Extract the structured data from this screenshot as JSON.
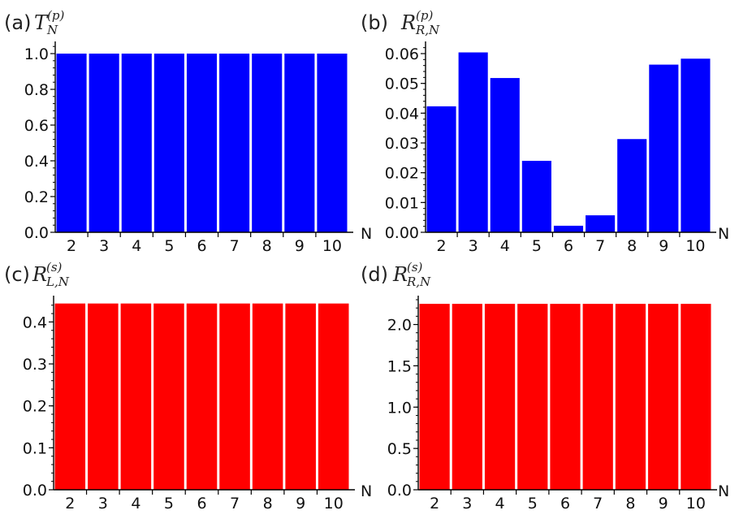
{
  "chart_data": [
    {
      "id": "a",
      "type": "bar",
      "panel_label": "(a)",
      "symbol": "T",
      "superscript": "(p)",
      "subscript": "N",
      "xlabel": "N",
      "categories": [
        "2",
        "3",
        "4",
        "5",
        "6",
        "7",
        "8",
        "9",
        "10"
      ],
      "values": [
        1.0,
        1.0,
        1.0,
        1.0,
        1.0,
        1.0,
        1.0,
        1.0,
        1.0
      ],
      "ylim": [
        0,
        1.05
      ],
      "yticks": [
        0.0,
        0.2,
        0.4,
        0.6,
        0.8,
        1.0
      ],
      "ytick_labels": [
        "0.0",
        "0.2",
        "0.4",
        "0.6",
        "0.8",
        "1.0"
      ],
      "color": "#0000ff"
    },
    {
      "id": "b",
      "type": "bar",
      "panel_label": "(b)",
      "symbol": "R",
      "superscript": "(p)",
      "subscript": "R,N",
      "xlabel": "N",
      "categories": [
        "2",
        "3",
        "4",
        "5",
        "6",
        "7",
        "8",
        "9",
        "10"
      ],
      "values": [
        0.0423,
        0.0604,
        0.0518,
        0.024,
        0.0022,
        0.0057,
        0.0313,
        0.0563,
        0.0583
      ],
      "ylim": [
        0,
        0.063
      ],
      "yticks": [
        0.0,
        0.01,
        0.02,
        0.03,
        0.04,
        0.05,
        0.06
      ],
      "ytick_labels": [
        "0.00",
        "0.01",
        "0.02",
        "0.03",
        "0.04",
        "0.05",
        "0.06"
      ],
      "color": "#0000ff"
    },
    {
      "id": "c",
      "type": "bar",
      "panel_label": "(c)",
      "symbol": "R",
      "superscript": "(s)",
      "subscript": "L,N",
      "xlabel": "N",
      "categories": [
        "2",
        "3",
        "4",
        "5",
        "6",
        "7",
        "8",
        "9",
        "10"
      ],
      "values": [
        0.444,
        0.444,
        0.444,
        0.444,
        0.444,
        0.444,
        0.444,
        0.444,
        0.444
      ],
      "ylim": [
        0,
        0.455
      ],
      "yticks": [
        0.0,
        0.1,
        0.2,
        0.3,
        0.4
      ],
      "ytick_labels": [
        "0.0",
        "0.1",
        "0.2",
        "0.3",
        "0.4"
      ],
      "color": "#ff0000"
    },
    {
      "id": "d",
      "type": "bar",
      "panel_label": "(d)",
      "symbol": "R",
      "superscript": "(s)",
      "subscript": "R,N",
      "xlabel": "N",
      "categories": [
        "2",
        "3",
        "4",
        "5",
        "6",
        "7",
        "8",
        "9",
        "10"
      ],
      "values": [
        2.25,
        2.25,
        2.25,
        2.25,
        2.25,
        2.25,
        2.25,
        2.25,
        2.25
      ],
      "ylim": [
        0,
        2.31
      ],
      "yticks": [
        0.0,
        0.5,
        1.0,
        1.5,
        2.0
      ],
      "ytick_labels": [
        "0.0",
        "0.5",
        "1.0",
        "1.5",
        "2.0"
      ],
      "color": "#ff0000"
    }
  ]
}
